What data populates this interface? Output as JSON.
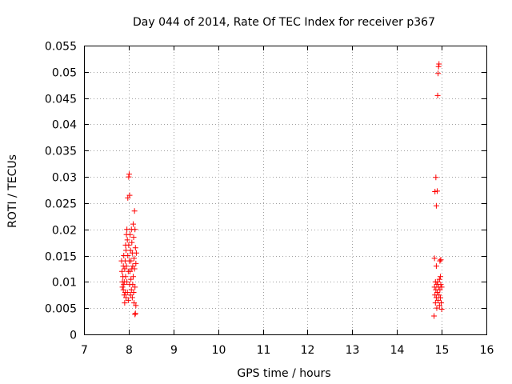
{
  "chart_data": {
    "type": "scatter",
    "title": "Day 044 of 2014, Rate Of TEC Index for receiver p367",
    "xlabel": "GPS time / hours",
    "ylabel": "ROTI / TECUs",
    "xlim": [
      7,
      16
    ],
    "ylim": [
      0,
      0.055
    ],
    "x_ticks": [
      "7",
      "8",
      "9",
      "10",
      "11",
      "12",
      "13",
      "14",
      "15",
      "16"
    ],
    "y_ticks": [
      "0",
      "0.005",
      "0.01",
      "0.015",
      "0.02",
      "0.025",
      "0.03",
      "0.035",
      "0.04",
      "0.045",
      "0.05",
      "0.055"
    ],
    "grid": true,
    "marker": "plus",
    "series": [
      {
        "name": "ROTI",
        "color": "#ff0000",
        "points": [
          [
            7.84,
            0.014
          ],
          [
            7.85,
            0.012
          ],
          [
            7.86,
            0.01
          ],
          [
            7.86,
            0.009
          ],
          [
            7.87,
            0.011
          ],
          [
            7.88,
            0.013
          ],
          [
            7.88,
            0.0085
          ],
          [
            7.89,
            0.015
          ],
          [
            7.89,
            0.0095
          ],
          [
            7.9,
            0.01
          ],
          [
            7.9,
            0.0075
          ],
          [
            7.91,
            0.0125
          ],
          [
            7.91,
            0.006
          ],
          [
            7.92,
            0.014
          ],
          [
            7.92,
            0.008
          ],
          [
            7.93,
            0.017
          ],
          [
            7.93,
            0.011
          ],
          [
            7.94,
            0.016
          ],
          [
            7.94,
            0.007
          ],
          [
            7.95,
            0.019
          ],
          [
            7.95,
            0.013
          ],
          [
            7.96,
            0.02
          ],
          [
            7.96,
            0.01
          ],
          [
            7.97,
            0.018
          ],
          [
            7.97,
            0.008
          ],
          [
            7.98,
            0.015
          ],
          [
            7.98,
            0.026
          ],
          [
            7.99,
            0.012
          ],
          [
            7.99,
            0.0065
          ],
          [
            8.0,
            0.03
          ],
          [
            8.0,
            0.017
          ],
          [
            8.01,
            0.0305
          ],
          [
            8.01,
            0.014
          ],
          [
            8.02,
            0.0265
          ],
          [
            8.02,
            0.0095
          ],
          [
            8.03,
            0.019
          ],
          [
            8.03,
            0.012
          ],
          [
            8.04,
            0.016
          ],
          [
            8.04,
            0.0075
          ],
          [
            8.05,
            0.014
          ],
          [
            8.05,
            0.0105
          ],
          [
            8.06,
            0.02
          ],
          [
            8.06,
            0.0085
          ],
          [
            8.07,
            0.0175
          ],
          [
            8.07,
            0.0125
          ],
          [
            8.08,
            0.0155
          ],
          [
            8.08,
            0.007
          ],
          [
            8.09,
            0.013
          ],
          [
            8.09,
            0.0095
          ],
          [
            8.1,
            0.021
          ],
          [
            8.1,
            0.011
          ],
          [
            8.11,
            0.0185
          ],
          [
            8.11,
            0.008
          ],
          [
            8.12,
            0.0145
          ],
          [
            8.12,
            0.006
          ],
          [
            8.13,
            0.0235
          ],
          [
            8.13,
            0.0125
          ],
          [
            8.14,
            0.02
          ],
          [
            8.14,
            0.009
          ],
          [
            8.15,
            0.0165
          ],
          [
            8.15,
            0.004
          ],
          [
            8.16,
            0.0135
          ],
          [
            8.16,
            0.0055
          ],
          [
            8.17,
            0.0155
          ],
          [
            8.14,
            0.0038
          ],
          [
            14.83,
            0.0035
          ],
          [
            14.84,
            0.009
          ],
          [
            14.84,
            0.0145
          ],
          [
            14.85,
            0.0075
          ],
          [
            14.85,
            0.0272
          ],
          [
            14.86,
            0.01
          ],
          [
            14.86,
            0.006
          ],
          [
            14.87,
            0.0299
          ],
          [
            14.87,
            0.0085
          ],
          [
            14.88,
            0.013
          ],
          [
            14.88,
            0.007
          ],
          [
            14.88,
            0.0245
          ],
          [
            14.89,
            0.0095
          ],
          [
            14.89,
            0.005
          ],
          [
            14.9,
            0.0273
          ],
          [
            14.9,
            0.008
          ],
          [
            14.91,
            0.0455
          ],
          [
            14.91,
            0.01
          ],
          [
            14.92,
            0.0497
          ],
          [
            14.92,
            0.0065
          ],
          [
            14.93,
            0.051
          ],
          [
            14.93,
            0.009
          ],
          [
            14.94,
            0.0515
          ],
          [
            14.94,
            0.0075
          ],
          [
            14.95,
            0.0105
          ],
          [
            14.95,
            0.0055
          ],
          [
            14.96,
            0.0085
          ],
          [
            14.96,
            0.014
          ],
          [
            14.97,
            0.007
          ],
          [
            14.97,
            0.011
          ],
          [
            14.98,
            0.0095
          ],
          [
            14.98,
            0.0142
          ],
          [
            14.99,
            0.006
          ],
          [
            15.0,
            0.009
          ],
          [
            15.0,
            0.0048
          ]
        ]
      }
    ]
  }
}
